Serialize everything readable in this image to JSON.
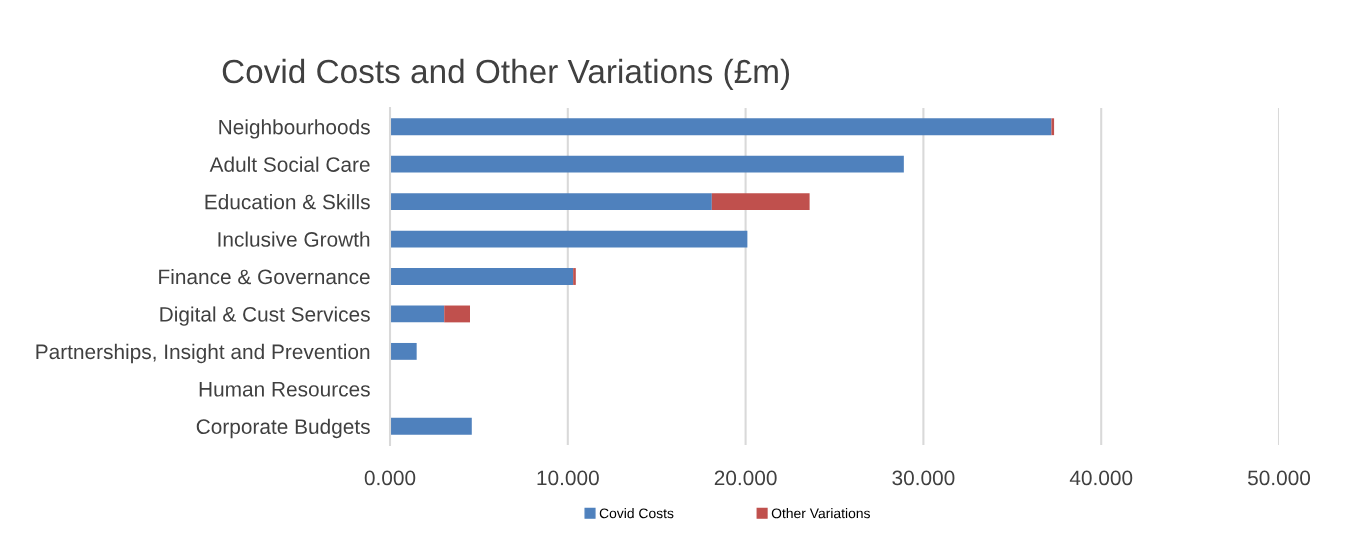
{
  "chart_data": {
    "type": "bar",
    "orientation": "horizontal",
    "stacked": true,
    "title": "Covid Costs and Other Variations (£m)",
    "categories": [
      "Neighbourhoods",
      "Adult Social Care",
      "Education & Skills",
      "Inclusive Growth",
      "Finance & Governance",
      "Digital & Cust Services",
      "Partnerships, Insight and Prevention",
      "Human Resources",
      "Corporate Budgets"
    ],
    "series": [
      {
        "name": "Covid Costs",
        "color": "#4f81bd",
        "values": [
          37.2,
          28.9,
          18.1,
          20.1,
          10.3,
          3.05,
          1.5,
          0,
          4.6
        ]
      },
      {
        "name": "Other Variations",
        "color": "#c0504d",
        "values": [
          0.15,
          0,
          5.5,
          0,
          0.15,
          1.45,
          0,
          0,
          0
        ]
      }
    ],
    "xlim": [
      0,
      50
    ],
    "xticks": [
      {
        "value": 0,
        "label": "0.000"
      },
      {
        "value": 10,
        "label": "10.000"
      },
      {
        "value": 20,
        "label": "20.000"
      },
      {
        "value": 30,
        "label": "30.000"
      },
      {
        "value": 40,
        "label": "40.000"
      },
      {
        "value": 50,
        "label": "50.000"
      }
    ],
    "grid": "x",
    "legend": "bottom"
  }
}
